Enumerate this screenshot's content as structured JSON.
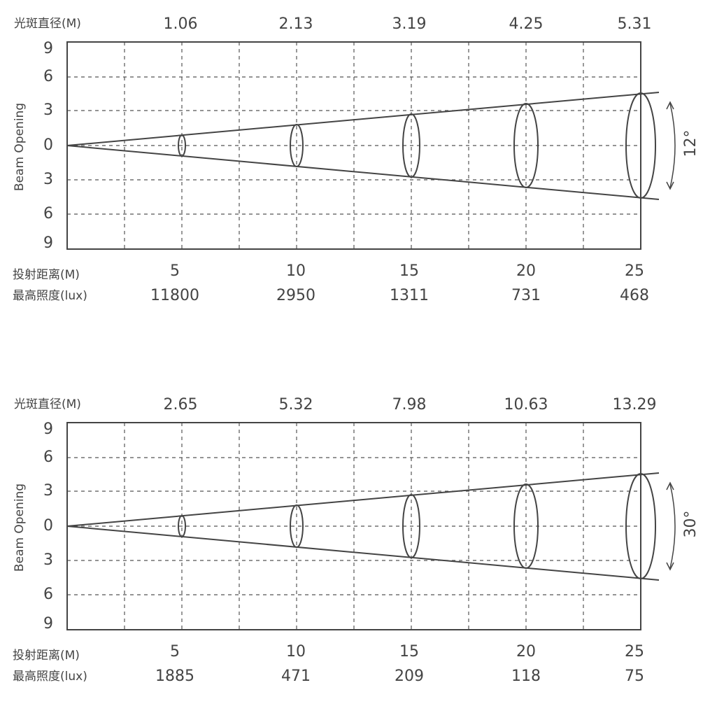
{
  "panels": [
    {
      "diameter_label": "光斑直径(M)",
      "diameters": [
        1.06,
        2.13,
        3.19,
        4.25,
        5.31
      ],
      "y_axis_title": "Beam Opening",
      "y_ticks": [
        9,
        6,
        3,
        0,
        3,
        6,
        9
      ],
      "distance_label": "投射距离(M)",
      "distances": [
        5,
        10,
        15,
        20,
        25
      ],
      "lux_label": "最高照度(lux)",
      "lux": [
        11800,
        2950,
        1311,
        731,
        468
      ],
      "angle": "12°"
    },
    {
      "diameter_label": "光斑直径(M)",
      "diameters": [
        2.65,
        5.32,
        7.98,
        10.63,
        13.29
      ],
      "y_axis_title": "Beam Opening",
      "y_ticks": [
        9,
        6,
        3,
        0,
        3,
        6,
        9
      ],
      "distance_label": "投射距离(M)",
      "distances": [
        5,
        10,
        15,
        20,
        25
      ],
      "lux_label": "最高照度(lux)",
      "lux": [
        1885,
        471,
        209,
        118,
        75
      ],
      "angle": "30°"
    }
  ]
}
